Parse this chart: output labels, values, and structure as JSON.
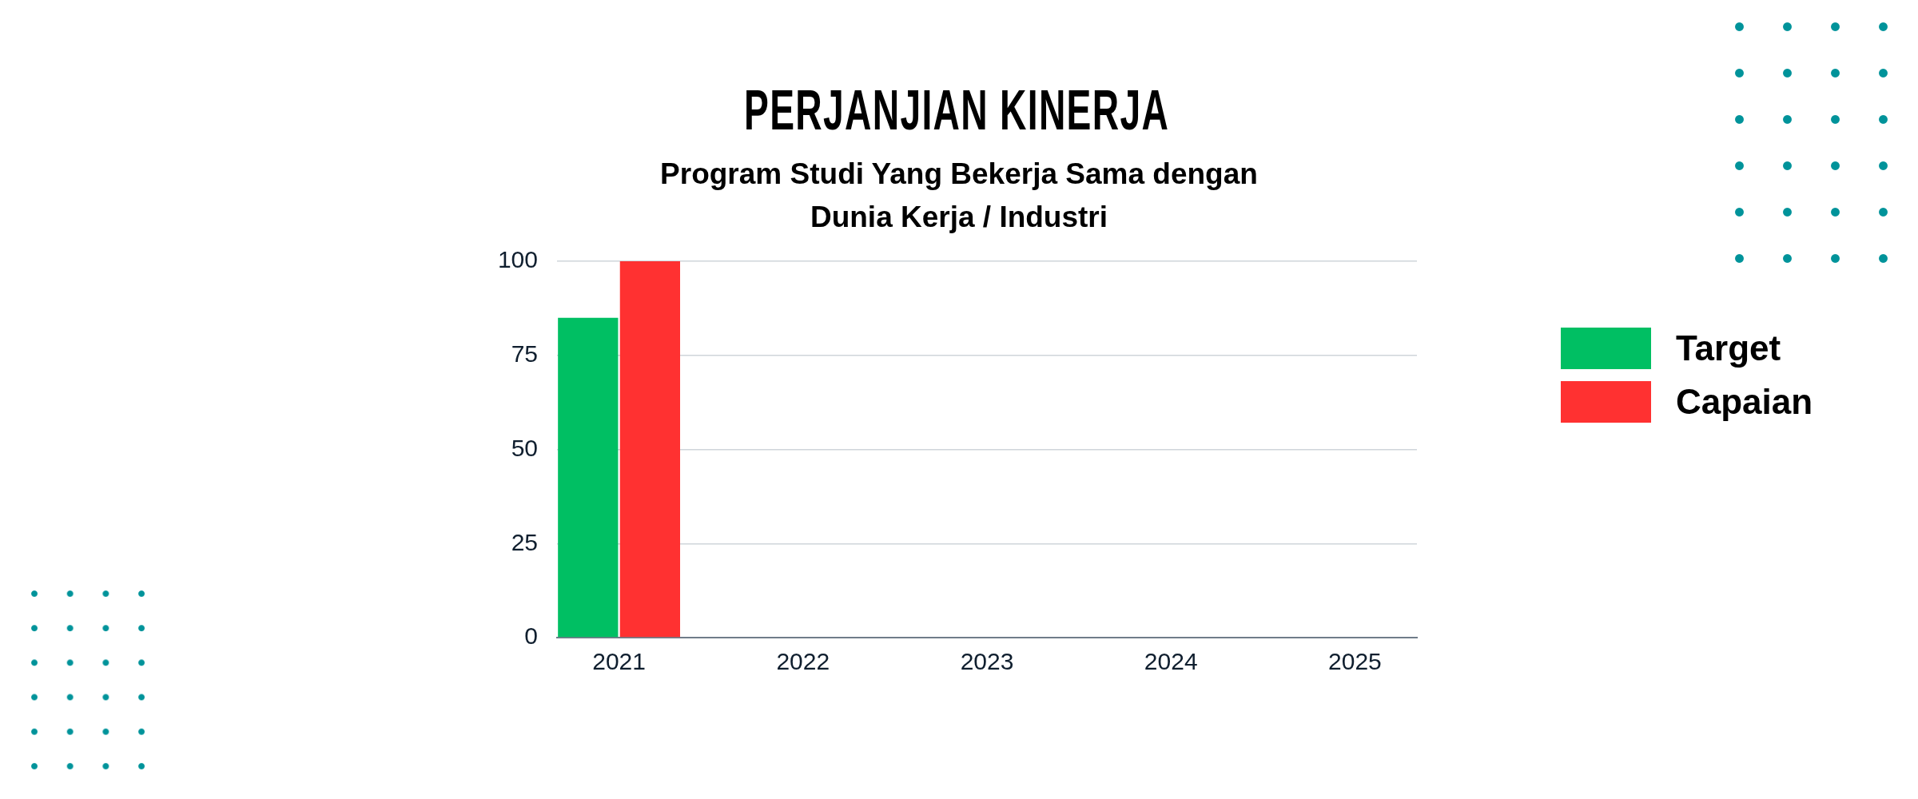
{
  "chart_data": {
    "type": "bar",
    "title": "PERJANJIAN KINERJA",
    "subtitle": "Program Studi Yang Bekerja Sama dengan Dunia Kerja / Industri",
    "categories": [
      "2021",
      "2022",
      "2023",
      "2024",
      "2025"
    ],
    "series": [
      {
        "name": "Target",
        "color": "#00bf63",
        "values": [
          85,
          null,
          null,
          null,
          null
        ]
      },
      {
        "name": "Capaian",
        "color": "#ff3131",
        "values": [
          100,
          null,
          null,
          null,
          null
        ]
      }
    ],
    "ylim": [
      0,
      100
    ],
    "yticks": [
      0,
      25,
      50,
      75,
      100
    ],
    "grid": "y",
    "legend": "right"
  }
}
